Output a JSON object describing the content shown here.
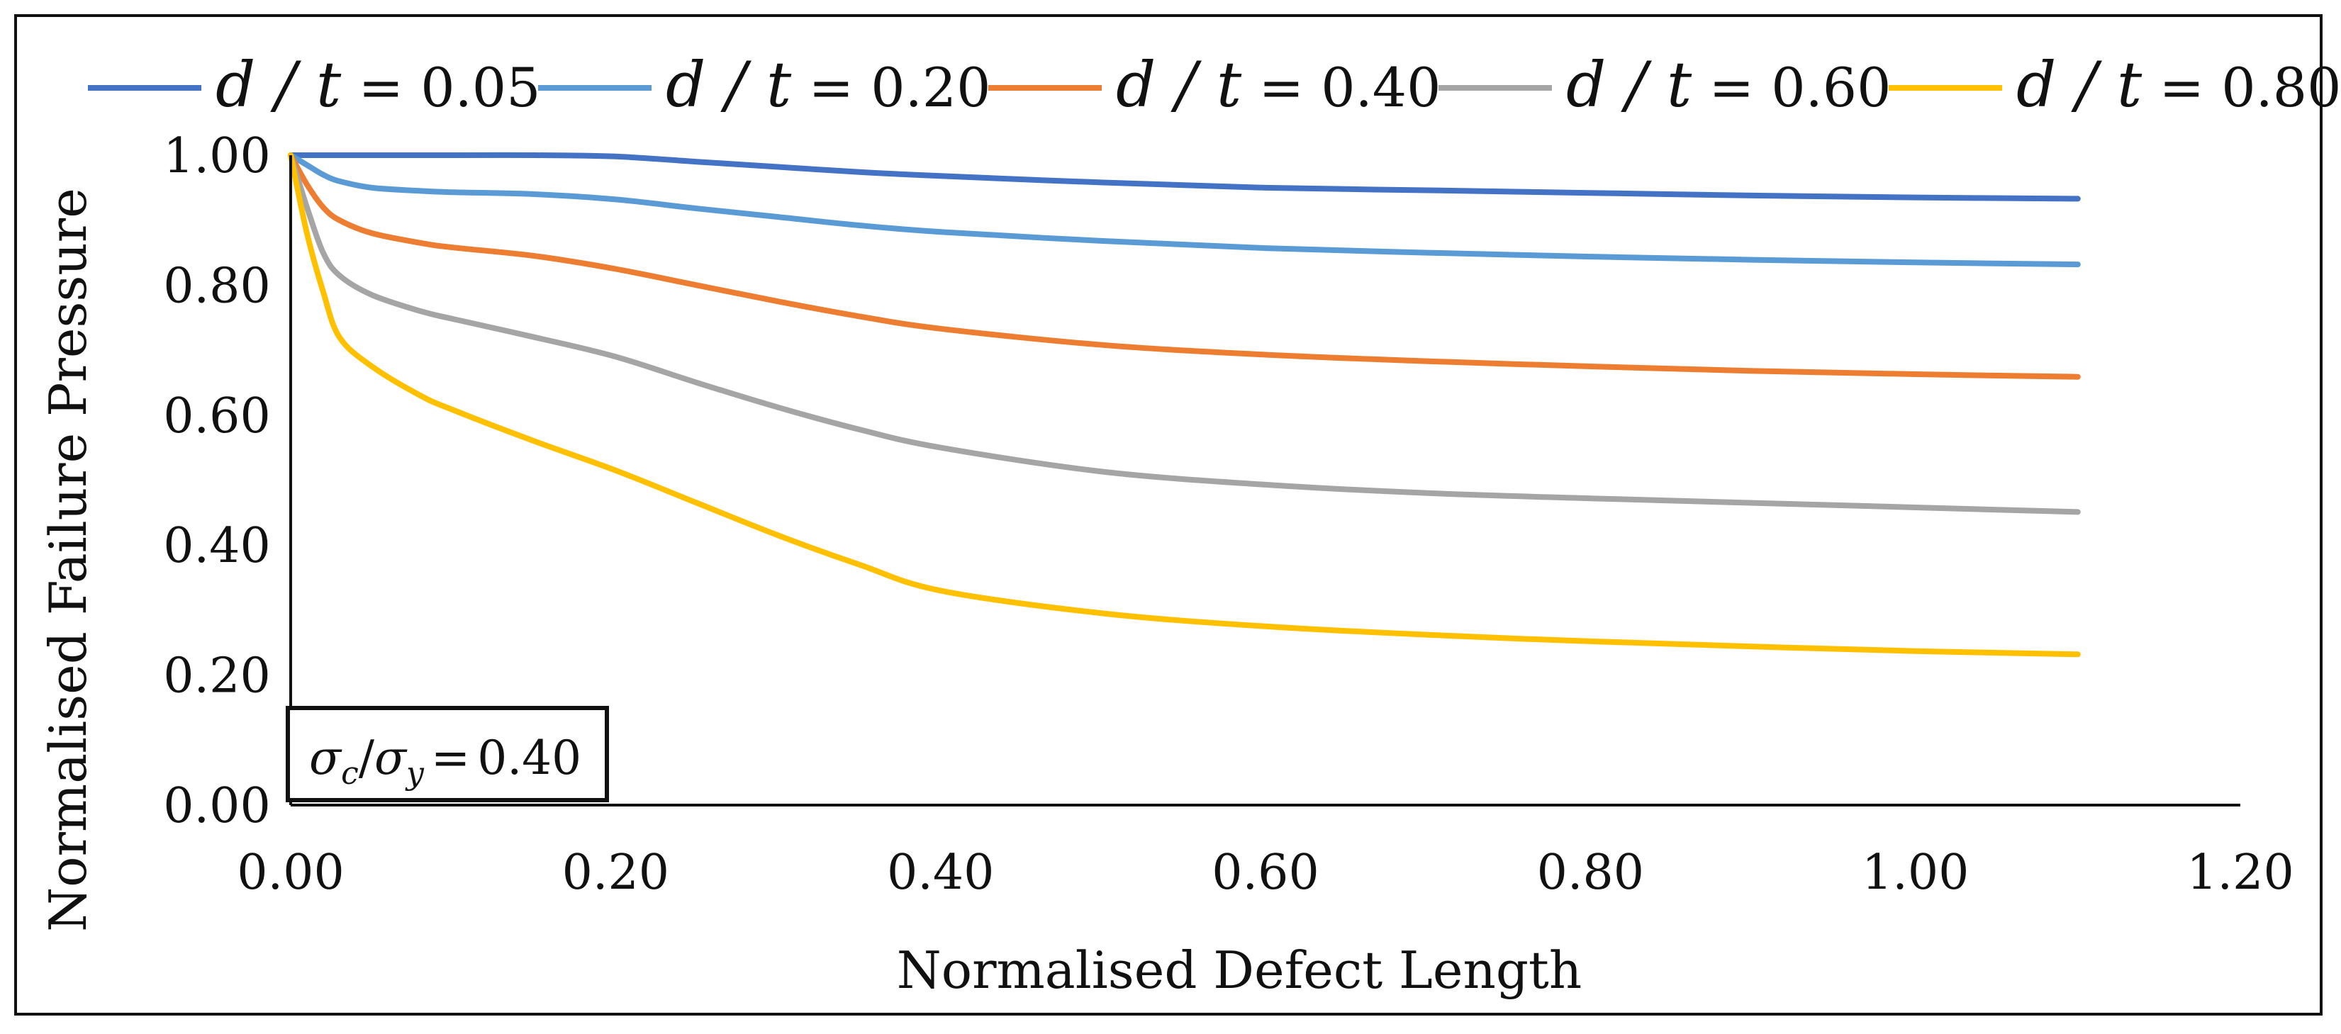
{
  "chart_data": {
    "type": "line",
    "title": "",
    "xlabel": "Normalised Defect Length",
    "ylabel": "Normalised Failure Pressure",
    "xlim": [
      0,
      1.2
    ],
    "ylim": [
      0,
      1.0
    ],
    "x_ticks": [
      0,
      0.2,
      0.4,
      0.6,
      0.8,
      1.0,
      1.2
    ],
    "y_ticks": [
      0,
      0.2,
      0.4,
      0.6,
      0.8,
      1.0
    ],
    "x_tick_labels": [
      "0.00",
      "0.20",
      "0.40",
      "0.60",
      "0.80",
      "1.00",
      "1.20"
    ],
    "y_tick_labels": [
      "0.00",
      "0.20",
      "0.40",
      "0.60",
      "0.80",
      "1.00"
    ],
    "grid": false,
    "legend_position": "top",
    "annotation": {
      "label": "σc/σy = 0.40",
      "sigma": "σ",
      "c_sub": "c",
      "y_sub": "y",
      "slash": "/",
      "equals": "=",
      "value": "0.40"
    },
    "x": [
      0,
      0.01,
      0.02,
      0.03,
      0.05,
      0.08,
      0.1,
      0.15,
      0.2,
      0.25,
      0.3,
      0.35,
      0.4,
      0.5,
      0.6,
      0.7,
      0.8,
      0.9,
      1.0,
      1.1
    ],
    "series": [
      {
        "name": "d / t = 0.05",
        "legend_var": "d / t",
        "legend_value": "0.05",
        "color": "#4472C4",
        "values": [
          1.0,
          1.0,
          1.0,
          1.0,
          1.0,
          1.0,
          1.0,
          1.0,
          0.998,
          0.99,
          0.982,
          0.974,
          0.968,
          0.958,
          0.95,
          0.946,
          0.942,
          0.938,
          0.935,
          0.933
        ]
      },
      {
        "name": "d / t = 0.20",
        "legend_var": "d / t",
        "legend_value": "0.20",
        "color": "#5B9BD5",
        "values": [
          1.0,
          0.985,
          0.97,
          0.96,
          0.95,
          0.945,
          0.943,
          0.94,
          0.932,
          0.918,
          0.905,
          0.892,
          0.882,
          0.868,
          0.857,
          0.85,
          0.844,
          0.839,
          0.835,
          0.832
        ]
      },
      {
        "name": "d / t = 0.40",
        "legend_var": "d / t",
        "legend_value": "0.40",
        "color": "#ED7D31",
        "values": [
          1.0,
          0.955,
          0.92,
          0.9,
          0.88,
          0.865,
          0.858,
          0.845,
          0.825,
          0.8,
          0.775,
          0.752,
          0.733,
          0.708,
          0.693,
          0.683,
          0.675,
          0.668,
          0.663,
          0.659
        ]
      },
      {
        "name": "d / t = 0.60",
        "legend_var": "d / t",
        "legend_value": "0.60",
        "color": "#A5A5A5",
        "values": [
          1.0,
          0.92,
          0.85,
          0.815,
          0.785,
          0.76,
          0.748,
          0.72,
          0.69,
          0.65,
          0.612,
          0.578,
          0.55,
          0.513,
          0.493,
          0.48,
          0.472,
          0.465,
          0.458,
          0.451
        ]
      },
      {
        "name": "d / t = 0.80",
        "legend_var": "d / t",
        "legend_value": "0.80",
        "color": "#FFC000",
        "values": [
          1.0,
          0.88,
          0.79,
          0.72,
          0.675,
          0.63,
          0.608,
          0.56,
          0.515,
          0.465,
          0.415,
          0.37,
          0.33,
          0.295,
          0.275,
          0.262,
          0.252,
          0.244,
          0.237,
          0.232
        ]
      }
    ]
  }
}
